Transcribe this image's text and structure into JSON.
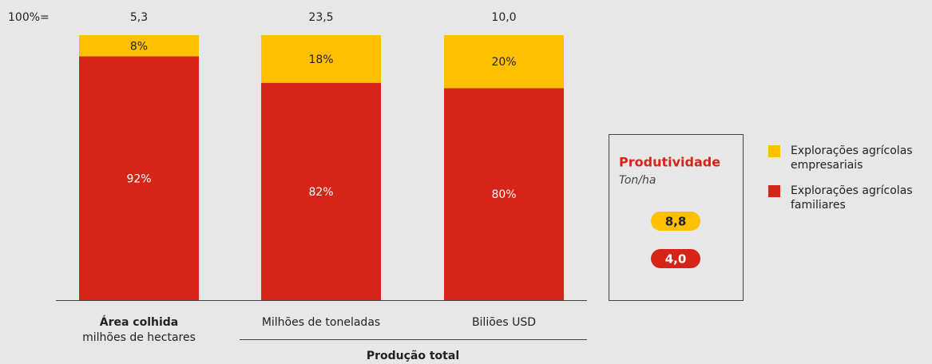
{
  "chart_data": {
    "type": "stacked_bar_100",
    "total_label": "100%=",
    "totals": [
      {
        "value": 5.3,
        "label": "5,3"
      },
      {
        "value": 23.5,
        "label": "23,5"
      },
      {
        "value": 10.0,
        "label": "10,0"
      }
    ],
    "categories": [
      "Área colhida",
      "Milhões de toneladas",
      "Biliões USD"
    ],
    "category_notes": [
      "milhões de hectares",
      null,
      null
    ],
    "group_label": "Produção total",
    "ylim": [
      0,
      100
    ],
    "series": [
      {
        "name": "Explorações agrícolas empresariais",
        "color": "#ffc000",
        "values": [
          8,
          18,
          20
        ],
        "value_labels": [
          "8%",
          "18%",
          "20%"
        ],
        "productivity": {
          "value": 8.8,
          "label": "8,8"
        }
      },
      {
        "name": "Explorações agrícolas familiares",
        "color": "#d42518",
        "values": [
          92,
          82,
          80
        ],
        "value_labels": [
          "92%",
          "82%",
          "80%"
        ],
        "productivity": {
          "value": 4.0,
          "label": "4,0"
        }
      }
    ],
    "productivity_title": "Produtividade",
    "productivity_unit": "Ton/ha"
  }
}
